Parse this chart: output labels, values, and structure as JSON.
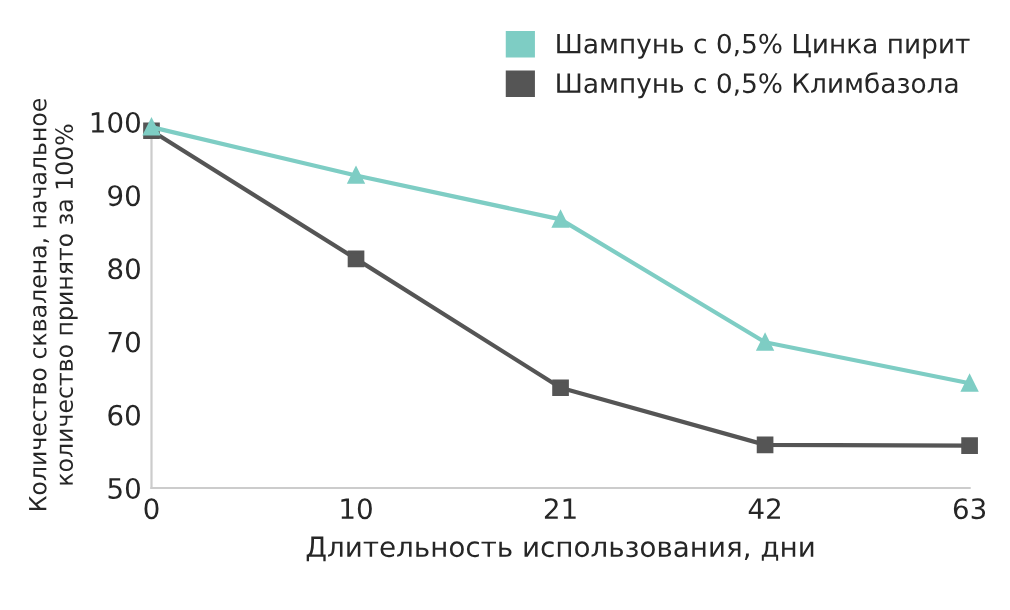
{
  "chart_data": {
    "type": "line",
    "xlabel": "Длительность использования, дни",
    "ylabel": "Количество сквалена, начальное\nколичество принято за 100%",
    "categories": [
      "0",
      "10",
      "21",
      "42",
      "63"
    ],
    "series": [
      {
        "name": "Шампунь с 0,5% Цинка пирит",
        "color": "#7ecdc4",
        "marker": "triangle",
        "values": [
          99.3,
          92.7,
          86.7,
          69.9,
          64.3
        ]
      },
      {
        "name": "Шампунь с 0,5% Климбазола",
        "color": "#555555",
        "marker": "square",
        "values": [
          98.8,
          81.3,
          63.7,
          55.9,
          55.8
        ]
      }
    ],
    "ylim": [
      50,
      100
    ],
    "yticks": [
      50,
      60,
      70,
      80,
      90,
      100
    ],
    "grid": false,
    "legend": "top right",
    "line_style": "solid"
  }
}
